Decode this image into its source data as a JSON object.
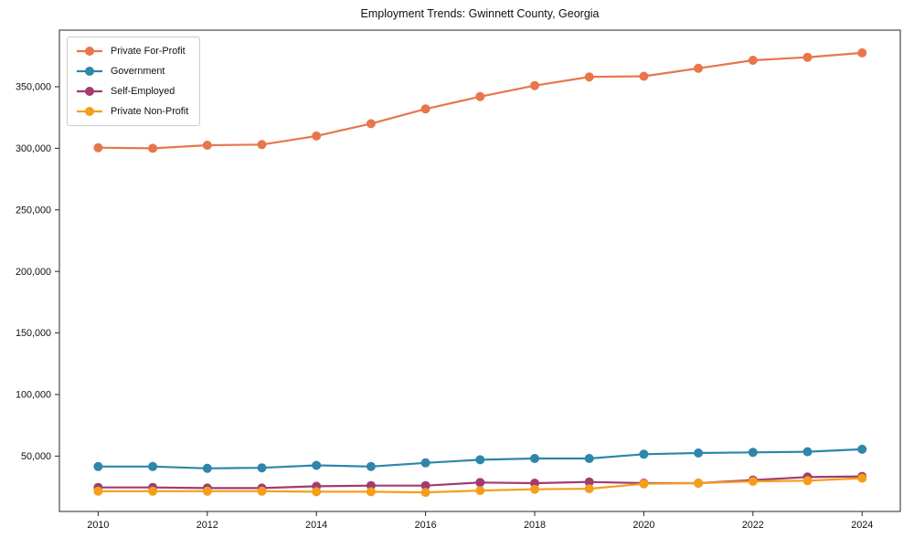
{
  "figure": {
    "background": "#ffffff",
    "axis_color": "#262626",
    "legend_border_color": "#cccccc"
  },
  "chart_data": {
    "type": "line",
    "title": "Employment Trends: Gwinnett County, Georgia",
    "xlabel": "",
    "ylabel": "",
    "x": [
      2010,
      2011,
      2012,
      2013,
      2014,
      2015,
      2016,
      2017,
      2018,
      2019,
      2020,
      2021,
      2022,
      2023,
      2024
    ],
    "x_ticks": [
      2010,
      2012,
      2014,
      2016,
      2018,
      2020,
      2022,
      2024
    ],
    "x_tick_labels": [
      "2010",
      "2012",
      "2014",
      "2016",
      "2018",
      "2020",
      "2022",
      "2024"
    ],
    "y_ticks": [
      50000,
      100000,
      150000,
      200000,
      250000,
      300000,
      350000
    ],
    "y_tick_labels": [
      "50,000",
      "100,000",
      "150,000",
      "200,000",
      "250,000",
      "300,000",
      "350,000"
    ],
    "xlim": [
      2009.29,
      2024.7
    ],
    "ylim": [
      5000,
      396000
    ],
    "grid": false,
    "legend_position": "upper-left",
    "series": [
      {
        "name": "Private For-Profit",
        "color": "#E8764B",
        "values": [
          300500,
          300000,
          302500,
          303000,
          310000,
          320000,
          332000,
          342000,
          351000,
          358000,
          358500,
          365000,
          371500,
          374000,
          377500
        ]
      },
      {
        "name": "Government",
        "color": "#2E86AB",
        "values": [
          41500,
          41500,
          40000,
          40500,
          42500,
          41500,
          44500,
          47000,
          48000,
          48000,
          51500,
          52500,
          53000,
          53500,
          55500
        ]
      },
      {
        "name": "Self-Employed",
        "color": "#A23B72",
        "values": [
          24500,
          24500,
          24000,
          24000,
          25500,
          26000,
          26000,
          28500,
          28000,
          29000,
          28000,
          28000,
          30500,
          33000,
          33500
        ]
      },
      {
        "name": "Private Non-Profit",
        "color": "#F49E1A",
        "values": [
          21500,
          21500,
          21500,
          21500,
          21000,
          21000,
          20500,
          22000,
          23000,
          23500,
          27500,
          28000,
          29500,
          30000,
          32000
        ]
      }
    ]
  }
}
